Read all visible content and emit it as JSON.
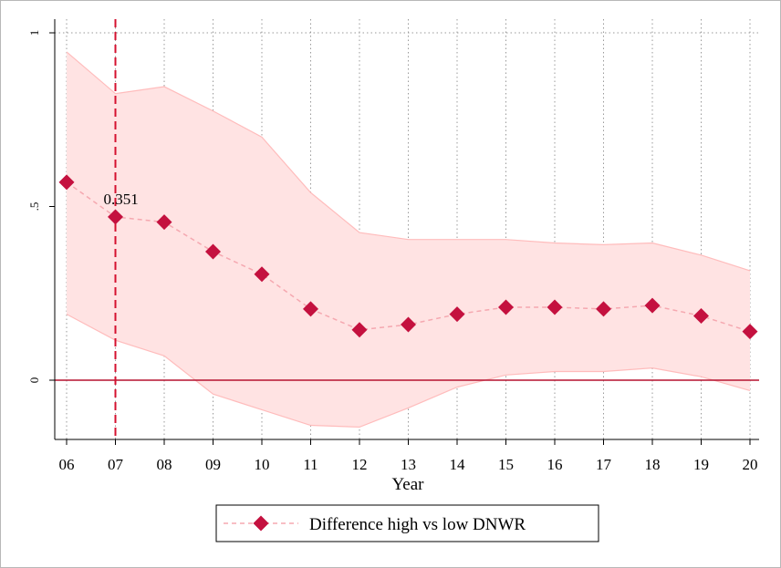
{
  "chart_data": {
    "type": "line",
    "xlabel": "Year",
    "ylabel": "",
    "categories": [
      "06",
      "07",
      "08",
      "09",
      "10",
      "11",
      "12",
      "13",
      "14",
      "15",
      "16",
      "17",
      "18",
      "19",
      "20"
    ],
    "ylim": [
      -0.17,
      1.05
    ],
    "yticks": [
      0,
      0.5,
      1
    ],
    "ytick_labels": [
      "0",
      ".5",
      "1"
    ],
    "grid": "dotted vertical and top",
    "series": [
      {
        "name": "Difference high vs low DNWR",
        "values": [
          0.57,
          0.47,
          0.455,
          0.37,
          0.305,
          0.205,
          0.145,
          0.16,
          0.19,
          0.21,
          0.21,
          0.205,
          0.215,
          0.185,
          0.14
        ],
        "ci_upper": [
          0.945,
          0.825,
          0.845,
          0.775,
          0.7,
          0.54,
          0.425,
          0.405,
          0.405,
          0.405,
          0.395,
          0.39,
          0.395,
          0.36,
          0.315
        ],
        "ci_lower": [
          0.19,
          0.115,
          0.07,
          -0.04,
          -0.085,
          -0.13,
          -0.135,
          -0.08,
          -0.02,
          0.015,
          0.025,
          0.025,
          0.035,
          0.01,
          -0.03
        ]
      }
    ],
    "reference_line": {
      "x": "07",
      "style": "dashed"
    },
    "annotation": {
      "text": "0.351",
      "x": "07"
    },
    "legend": {
      "position": "bottom-center"
    },
    "colors": {
      "marker": "#c4113f",
      "ci_fill": "#ffe3e3",
      "ci_edge": "#ffbcbc",
      "connect": "#f5a8b0",
      "zero_line": "#b5122f",
      "ref_line": "#d4112f"
    }
  }
}
